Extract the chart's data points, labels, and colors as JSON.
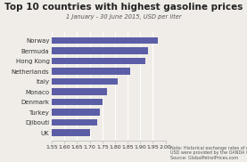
{
  "title": "Top 10 countries with highest gasoline prices",
  "subtitle": "1 January - 30 June 2015, USD per liter",
  "note": "Note: Historical exchange rates of national currencies to\nUSD were provided by the OANDA Corporation.\nSource: GlobalPetrolPrices.com",
  "categories": [
    "Norway",
    "Bermuda",
    "Hong Kong",
    "Netherlands",
    "Italy",
    "Monaco",
    "Denmark",
    "Turkey",
    "Djibouti",
    "UK"
  ],
  "values": [
    1.97,
    1.93,
    1.92,
    1.86,
    1.81,
    1.77,
    1.75,
    1.74,
    1.73,
    1.7
  ],
  "bar_color": "#5b5ea6",
  "xlim": [
    1.55,
    2.0
  ],
  "xlim_start": 1.55,
  "xticks": [
    1.55,
    1.6,
    1.65,
    1.7,
    1.75,
    1.8,
    1.85,
    1.9,
    1.95,
    2.0
  ],
  "background_color": "#f0ede8",
  "title_fontsize": 7.5,
  "subtitle_fontsize": 4.8,
  "note_fontsize": 3.5,
  "tick_fontsize": 4.5,
  "ylabel_fontsize": 5.0
}
